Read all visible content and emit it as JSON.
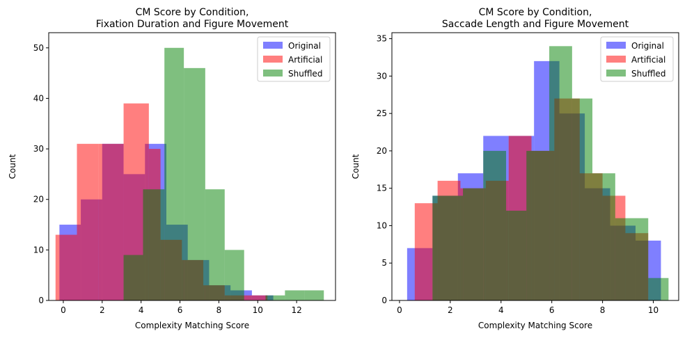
{
  "chart_data": [
    {
      "type": "histogram",
      "title_lines": [
        "CM Score by Condition,",
        "Fixation Duration and Figure Movement"
      ],
      "xlabel": "Complexity Matching Score",
      "ylabel": "Count",
      "xlim": [
        -0.75,
        14.0
      ],
      "ylim": [
        0,
        53
      ],
      "xticks": [
        0,
        2,
        4,
        6,
        8,
        10,
        12
      ],
      "yticks": [
        0,
        10,
        20,
        30,
        40,
        50
      ],
      "legend_position": "top-right",
      "alpha": 0.5,
      "series": [
        {
          "name": "Original",
          "color": "#0000ff",
          "edges": [
            -0.2,
            0.9,
            2.0,
            3.1,
            4.2,
            5.3,
            6.4,
            7.5,
            8.6,
            9.7,
            10.8
          ],
          "counts": [
            15,
            20,
            31,
            25,
            31,
            15,
            8,
            3,
            2,
            1
          ]
        },
        {
          "name": "Artificial",
          "color": "#ff0000",
          "edges": [
            -0.4,
            0.7,
            1.8,
            3.1,
            4.4,
            5.0,
            6.1,
            7.2,
            8.3,
            9.4,
            10.5
          ],
          "counts": [
            13,
            31,
            31,
            39,
            30,
            12,
            8,
            3,
            1,
            1
          ]
        },
        {
          "name": "Shuffled",
          "color": "#008000",
          "edges": [
            3.1,
            4.1,
            5.2,
            6.2,
            7.3,
            8.3,
            9.3,
            10.4,
            11.4,
            12.4,
            13.4
          ],
          "counts": [
            9,
            22,
            50,
            46,
            22,
            10,
            0,
            1,
            2,
            2
          ]
        }
      ]
    },
    {
      "type": "histogram",
      "title_lines": [
        "CM Score by Condition,",
        "Saccade Length and Figure Movement"
      ],
      "xlabel": "Complexity Matching Score",
      "ylabel": "Count",
      "xlim": [
        -0.3,
        11.0
      ],
      "ylim": [
        0,
        35.8
      ],
      "xticks": [
        0,
        2,
        4,
        6,
        8,
        10
      ],
      "yticks": [
        0,
        5,
        10,
        15,
        20,
        25,
        30,
        35
      ],
      "legend_position": "top-right",
      "alpha": 0.5,
      "series": [
        {
          "name": "Original",
          "color": "#0000ff",
          "edges": [
            0.3,
            1.3,
            2.3,
            3.3,
            4.3,
            5.3,
            6.3,
            7.3,
            8.3,
            9.3,
            10.3
          ],
          "counts": [
            7,
            14,
            17,
            22,
            22,
            32,
            25,
            15,
            10,
            8
          ]
        },
        {
          "name": "Artificial",
          "color": "#ff0000",
          "edges": [
            0.6,
            1.5,
            2.4,
            3.4,
            4.3,
            5.2,
            6.1,
            7.1,
            8.0,
            8.9,
            9.8
          ],
          "counts": [
            13,
            16,
            15,
            16,
            22,
            20,
            27,
            17,
            14,
            9
          ]
        },
        {
          "name": "Shuffled",
          "color": "#008000",
          "edges": [
            1.3,
            2.5,
            3.3,
            4.2,
            5.0,
            5.9,
            6.8,
            7.6,
            8.5,
            9.8,
            10.6
          ],
          "counts": [
            14,
            15,
            20,
            12,
            20,
            34,
            27,
            17,
            11,
            3
          ]
        }
      ]
    }
  ]
}
